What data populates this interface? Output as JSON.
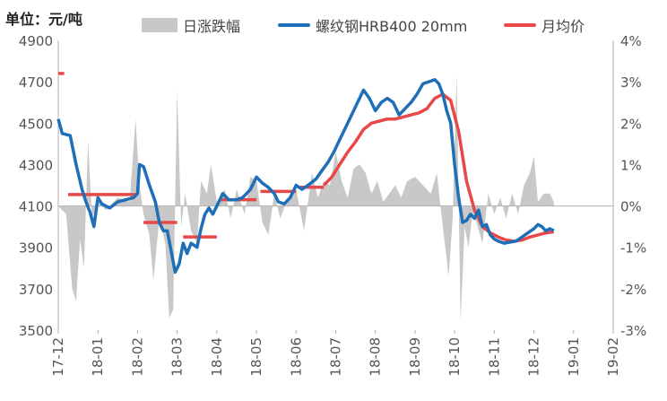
{
  "unit_label": "单位：元/吨",
  "legend": {
    "daily_change": "日涨跌幅",
    "rebar_price": "螺纹钢HRB400 20mm",
    "monthly_avg": "月均价"
  },
  "colors": {
    "daily_change": "#c8c8c8",
    "rebar_price": "#1f6fb8",
    "monthly_avg": "#e84848",
    "axis": "#b0b0b0",
    "tick_text": "#555555"
  },
  "chart_data": {
    "type": "line",
    "title": "",
    "left_axis": {
      "range": [
        3500,
        4900
      ],
      "ticks": [
        "4900",
        "4700",
        "4500",
        "4300",
        "4100",
        "3900",
        "3700",
        "3500"
      ]
    },
    "right_axis": {
      "range": [
        -3,
        4
      ],
      "ticks": [
        "4%",
        "3%",
        "2%",
        "1%",
        "0%",
        "-1%",
        "-2%",
        "-3%"
      ]
    },
    "x_ticks": [
      "17-12",
      "18-01",
      "18-02",
      "18-03",
      "18-04",
      "18-05",
      "18-06",
      "18-07",
      "18-08",
      "18-09",
      "18-10",
      "18-11",
      "18-12",
      "19-01",
      "19-02"
    ],
    "grid": false,
    "legend_position": "top",
    "series": [
      {
        "name": "螺纹钢HRB400 20mm",
        "axis": "left",
        "points": [
          [
            0,
            4520
          ],
          [
            0.1,
            4450
          ],
          [
            0.3,
            4440
          ],
          [
            0.45,
            4300
          ],
          [
            0.6,
            4180
          ],
          [
            0.7,
            4120
          ],
          [
            0.8,
            4070
          ],
          [
            0.9,
            4000
          ],
          [
            1.0,
            4140
          ],
          [
            1.1,
            4110
          ],
          [
            1.3,
            4090
          ],
          [
            1.5,
            4120
          ],
          [
            1.7,
            4130
          ],
          [
            1.9,
            4140
          ],
          [
            2.0,
            4160
          ],
          [
            2.05,
            4300
          ],
          [
            2.15,
            4290
          ],
          [
            2.3,
            4200
          ],
          [
            2.45,
            4120
          ],
          [
            2.55,
            4020
          ],
          [
            2.65,
            3980
          ],
          [
            2.75,
            3980
          ],
          [
            2.85,
            3880
          ],
          [
            2.95,
            3780
          ],
          [
            3.05,
            3820
          ],
          [
            3.15,
            3920
          ],
          [
            3.25,
            3870
          ],
          [
            3.35,
            3920
          ],
          [
            3.5,
            3900
          ],
          [
            3.6,
            3990
          ],
          [
            3.7,
            4060
          ],
          [
            3.8,
            4090
          ],
          [
            3.9,
            4060
          ],
          [
            4.05,
            4120
          ],
          [
            4.15,
            4160
          ],
          [
            4.3,
            4130
          ],
          [
            4.5,
            4130
          ],
          [
            4.65,
            4140
          ],
          [
            4.85,
            4180
          ],
          [
            5.0,
            4240
          ],
          [
            5.15,
            4210
          ],
          [
            5.3,
            4190
          ],
          [
            5.45,
            4160
          ],
          [
            5.55,
            4120
          ],
          [
            5.7,
            4110
          ],
          [
            5.85,
            4140
          ],
          [
            6.0,
            4200
          ],
          [
            6.15,
            4180
          ],
          [
            6.3,
            4200
          ],
          [
            6.5,
            4230
          ],
          [
            6.65,
            4270
          ],
          [
            6.8,
            4310
          ],
          [
            6.95,
            4360
          ],
          [
            7.1,
            4420
          ],
          [
            7.25,
            4480
          ],
          [
            7.4,
            4540
          ],
          [
            7.55,
            4600
          ],
          [
            7.7,
            4660
          ],
          [
            7.85,
            4620
          ],
          [
            8.0,
            4560
          ],
          [
            8.15,
            4600
          ],
          [
            8.3,
            4620
          ],
          [
            8.45,
            4600
          ],
          [
            8.6,
            4540
          ],
          [
            8.75,
            4570
          ],
          [
            8.9,
            4600
          ],
          [
            9.05,
            4640
          ],
          [
            9.2,
            4690
          ],
          [
            9.35,
            4700
          ],
          [
            9.5,
            4710
          ],
          [
            9.6,
            4690
          ],
          [
            9.7,
            4640
          ],
          [
            9.8,
            4560
          ],
          [
            9.9,
            4500
          ],
          [
            10.0,
            4300
          ],
          [
            10.1,
            4140
          ],
          [
            10.2,
            4020
          ],
          [
            10.3,
            4030
          ],
          [
            10.4,
            4060
          ],
          [
            10.5,
            4040
          ],
          [
            10.6,
            4080
          ],
          [
            10.7,
            4000
          ],
          [
            10.8,
            4010
          ],
          [
            10.9,
            3960
          ],
          [
            11.0,
            3940
          ],
          [
            11.1,
            3930
          ],
          [
            11.25,
            3920
          ],
          [
            11.4,
            3925
          ],
          [
            11.55,
            3930
          ],
          [
            11.7,
            3950
          ],
          [
            11.85,
            3970
          ],
          [
            12.0,
            3990
          ],
          [
            12.1,
            4010
          ],
          [
            12.2,
            4000
          ],
          [
            12.3,
            3980
          ],
          [
            12.4,
            3990
          ],
          [
            12.5,
            3980
          ]
        ]
      },
      {
        "name": "月均价",
        "axis": "left",
        "segments": [
          {
            "from": 0.0,
            "to": 0.15,
            "value": 4740
          },
          {
            "from": 0.25,
            "to": 2.0,
            "value": 4155
          },
          {
            "from": 2.15,
            "to": 3.0,
            "value": 4020
          },
          {
            "from": 3.15,
            "to": 4.0,
            "value": 3950
          },
          {
            "from": 4.05,
            "to": 5.0,
            "value": 4130
          },
          {
            "from": 5.1,
            "to": 6.0,
            "value": 4170
          },
          {
            "from": 6.1,
            "to": 6.7,
            "value": 4190
          }
        ],
        "points": [
          [
            6.7,
            4200
          ],
          [
            6.9,
            4240
          ],
          [
            7.1,
            4300
          ],
          [
            7.3,
            4360
          ],
          [
            7.5,
            4410
          ],
          [
            7.7,
            4470
          ],
          [
            7.9,
            4500
          ],
          [
            8.1,
            4510
          ],
          [
            8.3,
            4520
          ],
          [
            8.5,
            4520
          ],
          [
            8.7,
            4530
          ],
          [
            8.9,
            4540
          ],
          [
            9.1,
            4550
          ],
          [
            9.3,
            4570
          ],
          [
            9.5,
            4620
          ],
          [
            9.7,
            4640
          ],
          [
            9.9,
            4610
          ],
          [
            10.1,
            4460
          ],
          [
            10.3,
            4220
          ],
          [
            10.5,
            4080
          ],
          [
            10.7,
            4000
          ],
          [
            10.9,
            3970
          ],
          [
            11.1,
            3950
          ],
          [
            11.3,
            3935
          ],
          [
            11.5,
            3930
          ],
          [
            11.7,
            3935
          ],
          [
            11.9,
            3950
          ],
          [
            12.1,
            3960
          ],
          [
            12.3,
            3970
          ],
          [
            12.5,
            3975
          ]
        ]
      },
      {
        "name": "日涨跌幅",
        "axis": "right",
        "type": "area",
        "points": [
          [
            0,
            0
          ],
          [
            0.2,
            -0.2
          ],
          [
            0.35,
            -2.0
          ],
          [
            0.45,
            -2.3
          ],
          [
            0.55,
            -0.8
          ],
          [
            0.65,
            -1.5
          ],
          [
            0.75,
            1.6
          ],
          [
            0.85,
            -0.3
          ],
          [
            1.0,
            0.1
          ],
          [
            1.2,
            -0.1
          ],
          [
            1.5,
            0.2
          ],
          [
            1.8,
            0.1
          ],
          [
            1.95,
            2.1
          ],
          [
            2.05,
            0.5
          ],
          [
            2.15,
            -0.2
          ],
          [
            2.3,
            -0.7
          ],
          [
            2.4,
            -1.8
          ],
          [
            2.55,
            -0.3
          ],
          [
            2.7,
            -0.9
          ],
          [
            2.8,
            -2.7
          ],
          [
            2.9,
            -2.5
          ],
          [
            3.0,
            2.8
          ],
          [
            3.1,
            -0.5
          ],
          [
            3.2,
            0.3
          ],
          [
            3.35,
            -0.6
          ],
          [
            3.5,
            -0.9
          ],
          [
            3.6,
            0.6
          ],
          [
            3.75,
            0.3
          ],
          [
            3.85,
            1.0
          ],
          [
            4.0,
            0.1
          ],
          [
            4.2,
            0.4
          ],
          [
            4.35,
            -0.3
          ],
          [
            4.5,
            0.4
          ],
          [
            4.7,
            -0.2
          ],
          [
            4.85,
            0.7
          ],
          [
            5.0,
            0.6
          ],
          [
            5.15,
            -0.4
          ],
          [
            5.3,
            -0.7
          ],
          [
            5.45,
            0.3
          ],
          [
            5.6,
            -0.3
          ],
          [
            5.8,
            0.2
          ],
          [
            6.0,
            0.4
          ],
          [
            6.2,
            -0.6
          ],
          [
            6.4,
            0.8
          ],
          [
            6.55,
            0.2
          ],
          [
            6.7,
            0.6
          ],
          [
            6.85,
            0.5
          ],
          [
            7.0,
            1.3
          ],
          [
            7.15,
            0.6
          ],
          [
            7.3,
            0.2
          ],
          [
            7.45,
            0.9
          ],
          [
            7.6,
            1.0
          ],
          [
            7.75,
            0.8
          ],
          [
            7.9,
            0.3
          ],
          [
            8.05,
            0.6
          ],
          [
            8.2,
            0.1
          ],
          [
            8.35,
            0.3
          ],
          [
            8.5,
            0.5
          ],
          [
            8.65,
            0.2
          ],
          [
            8.8,
            0.6
          ],
          [
            9.0,
            0.7
          ],
          [
            9.2,
            0.5
          ],
          [
            9.4,
            0.3
          ],
          [
            9.55,
            0.8
          ],
          [
            9.7,
            -0.5
          ],
          [
            9.85,
            -1.7
          ],
          [
            9.95,
            -0.3
          ],
          [
            10.05,
            3.2
          ],
          [
            10.15,
            -2.8
          ],
          [
            10.25,
            -0.5
          ],
          [
            10.35,
            -1.0
          ],
          [
            10.45,
            -0.2
          ],
          [
            10.55,
            -0.4
          ],
          [
            10.7,
            -0.9
          ],
          [
            10.85,
            0.3
          ],
          [
            11.0,
            -0.2
          ],
          [
            11.15,
            0.2
          ],
          [
            11.3,
            -0.3
          ],
          [
            11.45,
            0.3
          ],
          [
            11.6,
            -0.2
          ],
          [
            11.75,
            0.5
          ],
          [
            11.9,
            0.8
          ],
          [
            12.0,
            1.2
          ],
          [
            12.1,
            0.1
          ],
          [
            12.25,
            0.3
          ],
          [
            12.4,
            0.3
          ],
          [
            12.5,
            0.1
          ]
        ]
      }
    ]
  }
}
